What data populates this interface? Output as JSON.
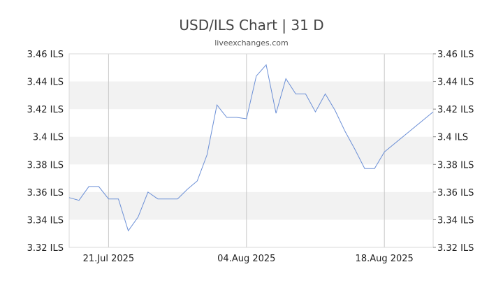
{
  "chart_data": {
    "type": "line",
    "title": "USD/ILS Chart | 31 D",
    "subtitle": "liveexchanges.com",
    "x_tick_labels": [
      "21.Jul 2025",
      "04.Aug 2025",
      "18.Aug 2025"
    ],
    "y_tick_labels": [
      "3.32 ILS",
      "3.34 ILS",
      "3.36 ILS",
      "3.38 ILS",
      "3.4 ILS",
      "3.42 ILS",
      "3.44 ILS",
      "3.46 ILS"
    ],
    "ylim": [
      3.32,
      3.46
    ],
    "xlim": [
      "2025-07-17",
      "2025-08-18"
    ],
    "grid": "alternating horizontal bands, vertical lines at x ticks",
    "series": [
      {
        "color": "#6b8fd6",
        "x": [
          "2025-07-17",
          "2025-07-18",
          "2025-07-19",
          "2025-07-20",
          "2025-07-21",
          "2025-07-22",
          "2025-07-23",
          "2025-07-24",
          "2025-07-25",
          "2025-07-26",
          "2025-07-27",
          "2025-07-28",
          "2025-07-29",
          "2025-07-30",
          "2025-07-31",
          "2025-08-01",
          "2025-08-02",
          "2025-08-03",
          "2025-08-04",
          "2025-08-05",
          "2025-08-06",
          "2025-08-07",
          "2025-08-08",
          "2025-08-09",
          "2025-08-10",
          "2025-08-11",
          "2025-08-12",
          "2025-08-13",
          "2025-08-14",
          "2025-08-15",
          "2025-08-16",
          "2025-08-17",
          "2025-08-18",
          "2025-08-23"
        ],
        "values": [
          3.356,
          3.354,
          3.364,
          3.364,
          3.355,
          3.355,
          3.332,
          3.342,
          3.36,
          3.355,
          3.355,
          3.355,
          3.362,
          3.368,
          3.387,
          3.423,
          3.414,
          3.414,
          3.413,
          3.444,
          3.452,
          3.417,
          3.442,
          3.431,
          3.431,
          3.418,
          3.431,
          3.419,
          3.404,
          3.391,
          3.377,
          3.377,
          3.389,
          3.418
        ]
      }
    ]
  }
}
